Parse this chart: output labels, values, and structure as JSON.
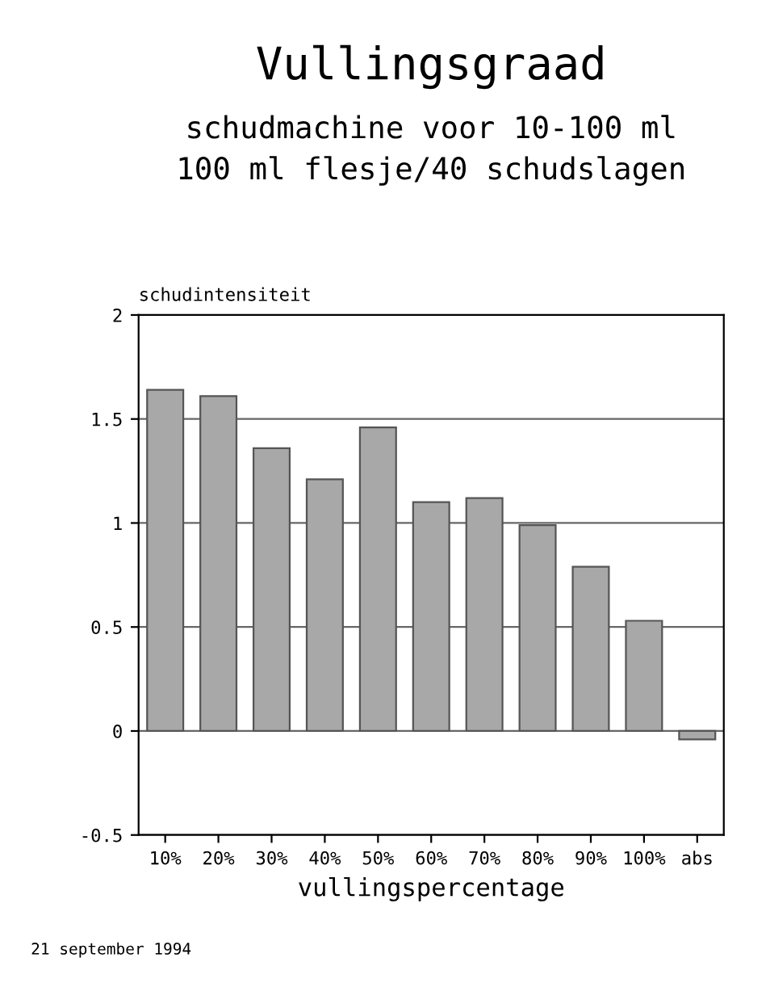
{
  "chart_data": {
    "type": "bar",
    "title": "Vullingsgraad",
    "subtitle": "schudmachine voor 10-100 ml\n100 ml flesje/40 schudslagen",
    "ylabel": "schudintensiteit",
    "xlabel": "vullingspercentage",
    "categories": [
      "10%",
      "20%",
      "30%",
      "40%",
      "50%",
      "60%",
      "70%",
      "80%",
      "90%",
      "100%",
      "abs"
    ],
    "values": [
      1.64,
      1.61,
      1.36,
      1.21,
      1.46,
      1.1,
      1.12,
      0.99,
      0.79,
      0.53,
      -0.04
    ],
    "color": "#a8a8a8",
    "ylim": [
      -0.5,
      2
    ],
    "yticks": [
      -0.5,
      0,
      0.5,
      1,
      1.5,
      2
    ],
    "grid": "y",
    "annotations": [
      "21 september 1994"
    ]
  }
}
